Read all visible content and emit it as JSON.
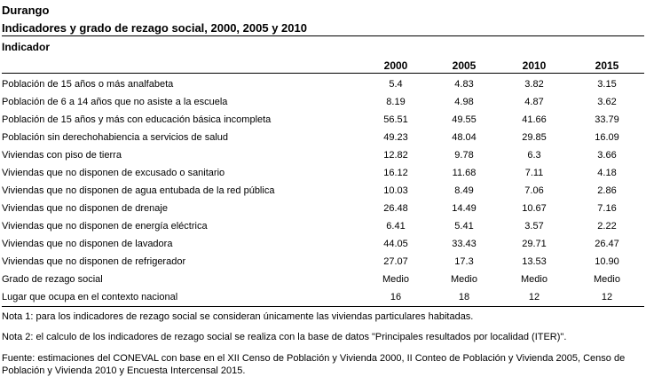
{
  "doc": {
    "title": "Durango",
    "subtitle": "Indicadores y grado de rezago social, 2000, 2005 y 2010",
    "section_label": "Indicador"
  },
  "table": {
    "years": [
      "2000",
      "2005",
      "2010",
      "2015"
    ],
    "rows": [
      {
        "label": "Población de 15 años o más analfabeta",
        "values": [
          "5.4",
          "4.83",
          "3.82",
          "3.15"
        ]
      },
      {
        "label": "Población de 6 a 14 años que no asiste a la escuela",
        "values": [
          "8.19",
          "4.98",
          "4.87",
          "3.62"
        ]
      },
      {
        "label": "Población de 15 años y más con educación básica incompleta",
        "values": [
          "56.51",
          "49.55",
          "41.66",
          "33.79"
        ]
      },
      {
        "label": "Población sin derechohabiencia a servicios de salud",
        "values": [
          "49.23",
          "48.04",
          "29.85",
          "16.09"
        ]
      },
      {
        "label": "Viviendas con piso de tierra",
        "values": [
          "12.82",
          "9.78",
          "6.3",
          "3.66"
        ]
      },
      {
        "label": "Viviendas que no disponen de excusado o sanitario",
        "values": [
          "16.12",
          "11.68",
          "7.11",
          "4.18"
        ]
      },
      {
        "label": "Viviendas que no disponen de agua entubada de la red pública",
        "values": [
          "10.03",
          "8.49",
          "7.06",
          "2.86"
        ]
      },
      {
        "label": "Viviendas que no disponen de drenaje",
        "values": [
          "26.48",
          "14.49",
          "10.67",
          "7.16"
        ]
      },
      {
        "label": "Viviendas que no disponen de energía eléctrica",
        "values": [
          "6.41",
          "5.41",
          "3.57",
          "2.22"
        ]
      },
      {
        "label": "Viviendas que no disponen de lavadora",
        "values": [
          "44.05",
          "33.43",
          "29.71",
          "26.47"
        ]
      },
      {
        "label": "Viviendas que no disponen de refrigerador",
        "values": [
          "27.07",
          "17.3",
          "13.53",
          "10.90"
        ]
      },
      {
        "label": "Grado de rezago social",
        "values": [
          "Medio",
          "Medio",
          "Medio",
          "Medio"
        ]
      },
      {
        "label": "Lugar que ocupa en el contexto nacional",
        "values": [
          "16",
          "18",
          "12",
          "12"
        ]
      }
    ]
  },
  "notes": {
    "note1": "Nota 1: para los indicadores de rezago social se consideran únicamente las viviendas particulares habitadas.",
    "note2": "Nota 2: el calculo de los indicadores de rezago social se realiza con la base de datos \"Principales resultados por localidad (ITER)\".",
    "source": "Fuente: estimaciones del CONEVAL con base en el XII Censo de Población y Vivienda 2000, II Conteo de Población y Vivienda 2005, Censo de Población y Vivienda 2010 y Encuesta Intercensal 2015."
  }
}
